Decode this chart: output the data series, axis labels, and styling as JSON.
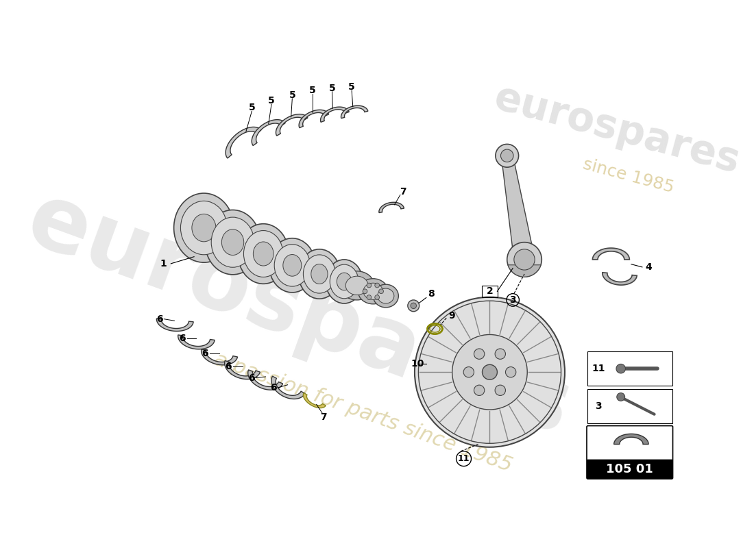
{
  "background_color": "#ffffff",
  "part_number_box": "105 01",
  "watermark_line1": "eurospares",
  "watermark_line2": "a passion for parts since 1985",
  "line_color": "#000000",
  "label_font_size": 10,
  "crankshaft_color": "#cccccc",
  "bearing_color": "#aaaaaa",
  "flywheel_color": "#dddddd",
  "accent_yellow": "#c8b000"
}
